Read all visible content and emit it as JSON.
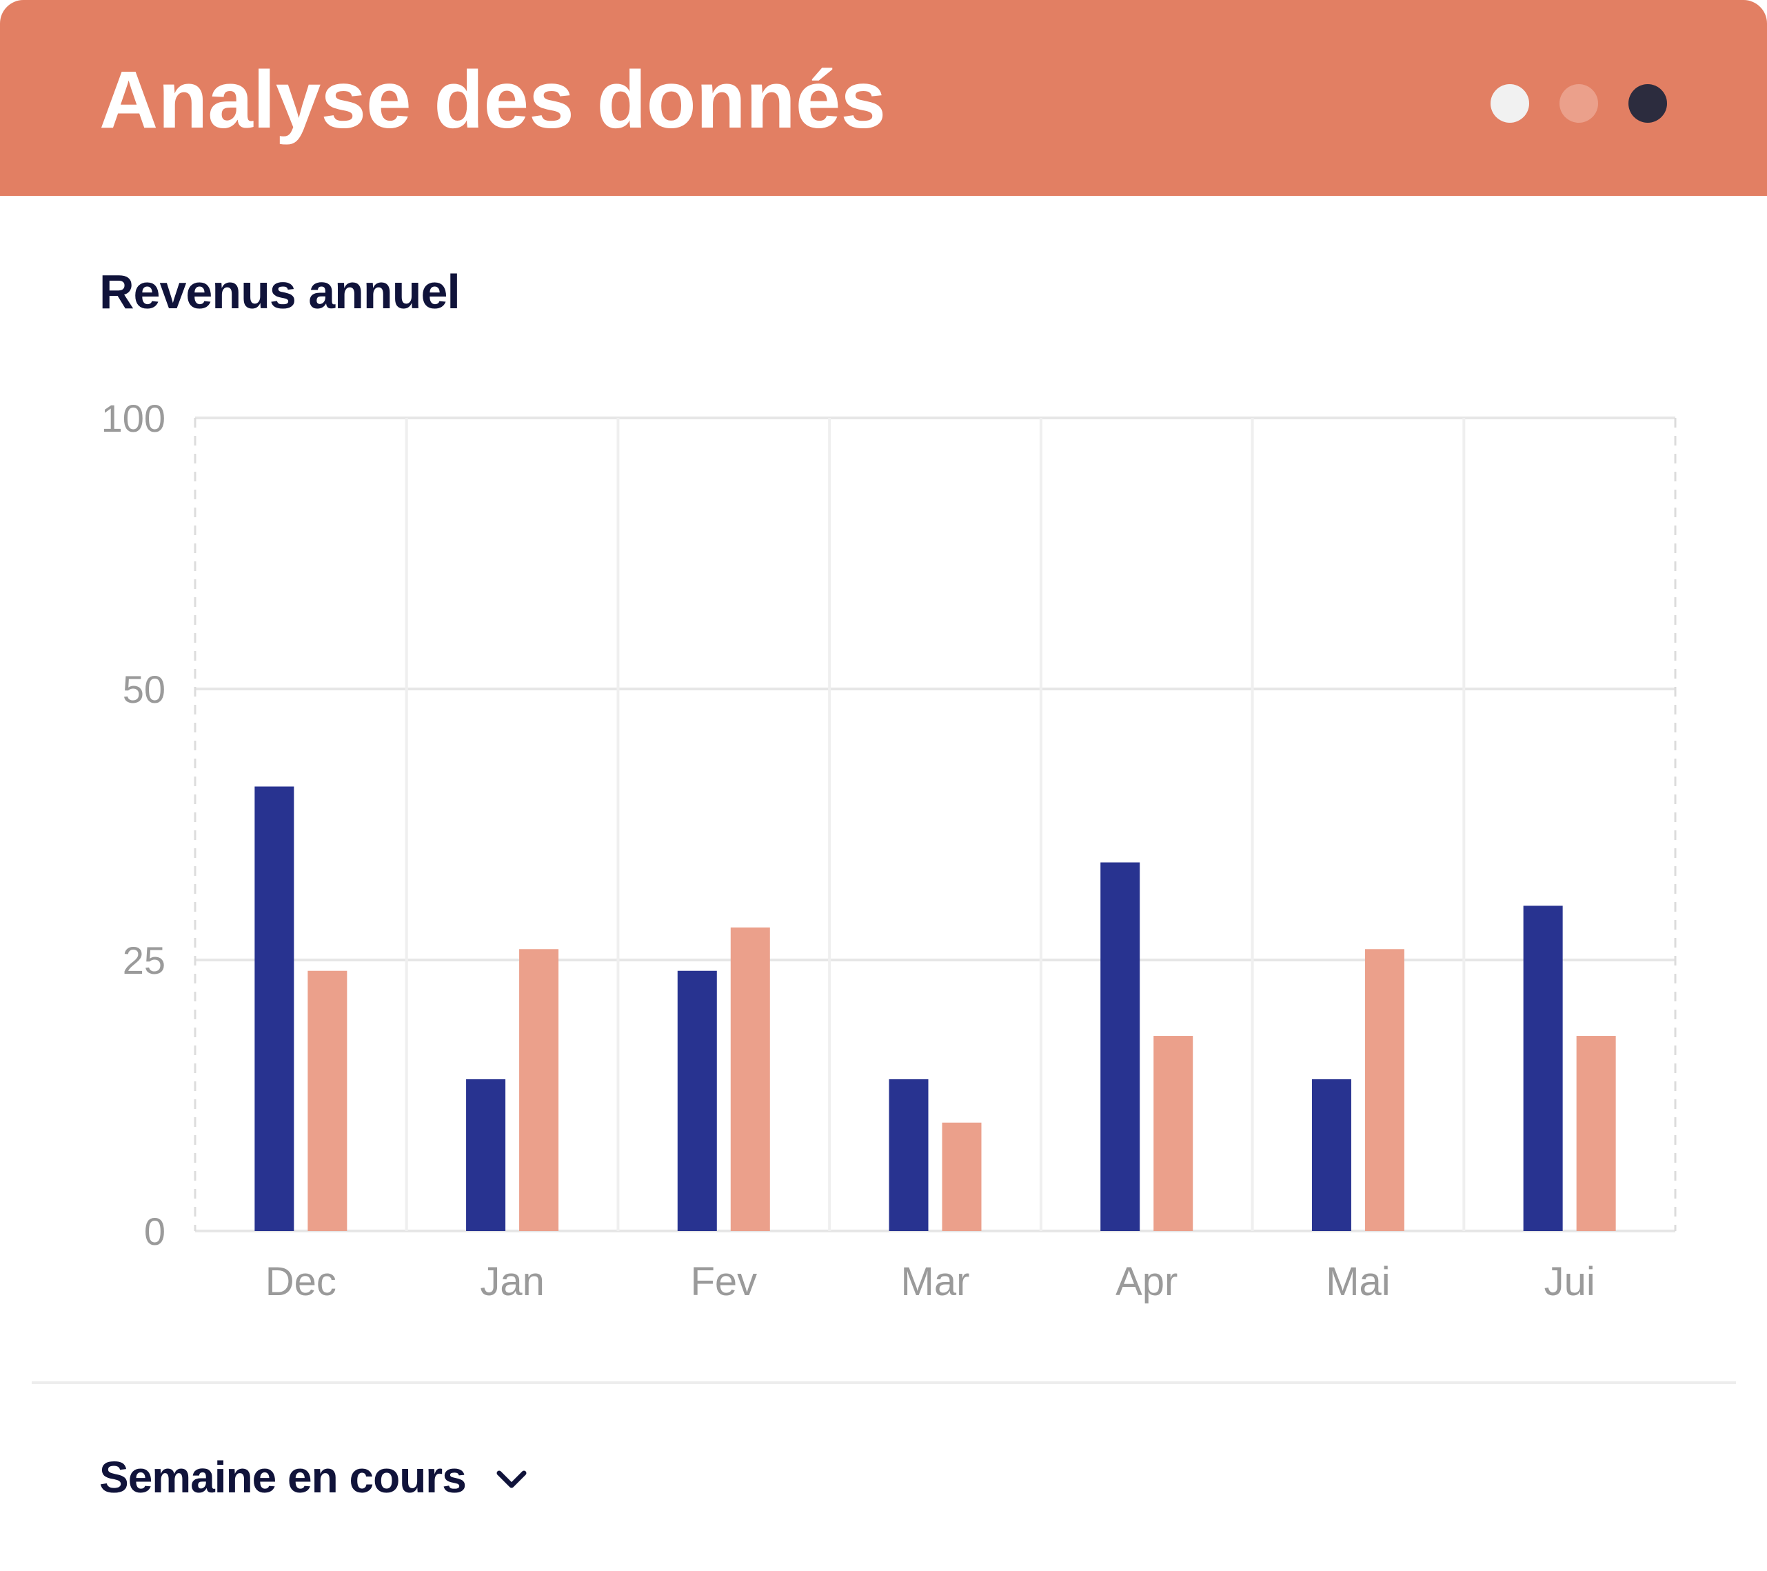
{
  "header": {
    "title": "Analyse des donnés",
    "dots": [
      {
        "name": "dot-light",
        "color": "#F1F1F1"
      },
      {
        "name": "dot-peach",
        "color": "#EBA08B"
      },
      {
        "name": "dot-dark",
        "color": "#2C2C3E"
      }
    ]
  },
  "panel": {
    "title": "Revenus annuel"
  },
  "chart_data": {
    "type": "bar",
    "title": "Revenus annuel",
    "categories": [
      "Dec",
      "Jan",
      "Fev",
      "Mar",
      "Apr",
      "Mai",
      "Jui"
    ],
    "series": [
      {
        "color": "#283390",
        "values": [
          41,
          14,
          24,
          14,
          34,
          14,
          30
        ]
      },
      {
        "color": "#EBA08B",
        "values": [
          24,
          26,
          28,
          10,
          18,
          26,
          18
        ]
      }
    ],
    "y_ticks": [
      0,
      25,
      50,
      100
    ],
    "ylim": [
      0,
      100
    ],
    "xlabel": "",
    "ylabel": "",
    "grid": true,
    "legend": "none"
  },
  "footer": {
    "period_label": "Semaine en cours",
    "icon": "chevron-down-icon"
  }
}
